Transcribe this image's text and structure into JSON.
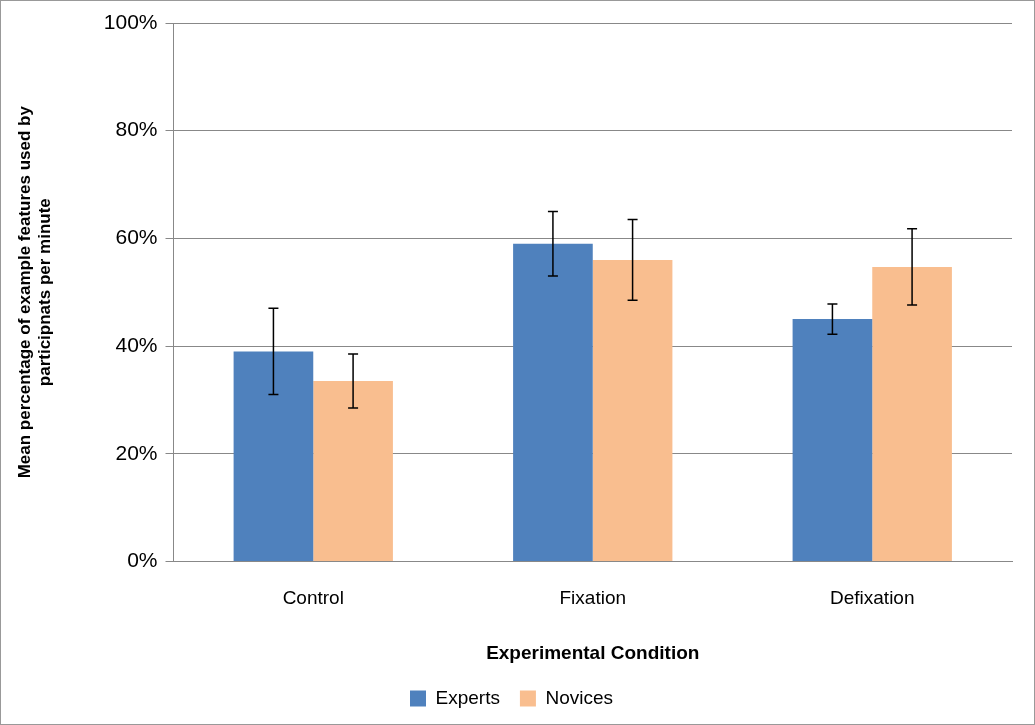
{
  "chart_data": {
    "type": "bar",
    "xlabel": "Experimental Condition",
    "ylabel": "Mean percentage of example features used by participnats per minute",
    "categories": [
      "Control",
      "Fixation",
      "Defixation"
    ],
    "series": [
      {
        "name": "Experts",
        "color": "#4f81bd",
        "values": [
          39,
          59,
          45
        ],
        "errors": [
          8,
          6,
          2.8
        ]
      },
      {
        "name": "Novices",
        "color": "#f9be8f",
        "values": [
          33.5,
          56,
          54.7
        ],
        "errors": [
          5,
          7.5,
          7.1
        ]
      }
    ],
    "ylim": [
      0,
      100
    ],
    "yticks": [
      {
        "value": 0,
        "label": "0%"
      },
      {
        "value": 20,
        "label": "20%"
      },
      {
        "value": 40,
        "label": "40%"
      },
      {
        "value": 60,
        "label": "60%"
      },
      {
        "value": 80,
        "label": "80%"
      },
      {
        "value": 100,
        "label": "100%"
      }
    ],
    "grid": "y",
    "legend": "bottom"
  }
}
